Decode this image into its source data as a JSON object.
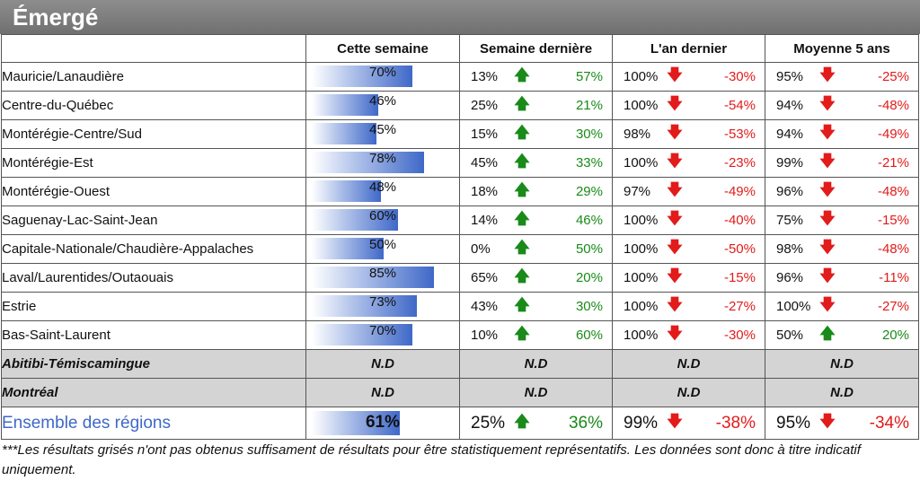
{
  "title": "Émergé",
  "headers": {
    "region": "",
    "this_week": "Cette semaine",
    "last_week": "Semaine dernière",
    "last_year": "L'an dernier",
    "avg5": "Moyenne 5 ans"
  },
  "rows": [
    {
      "region": "Mauricie/Lanaudière",
      "this_week": "70%",
      "this_week_pct": 70,
      "last_week": {
        "value": "13%",
        "dir": "up",
        "delta": "57%"
      },
      "last_year": {
        "value": "100%",
        "dir": "down",
        "delta": "-30%"
      },
      "avg5": {
        "value": "95%",
        "dir": "down",
        "delta": "-25%"
      }
    },
    {
      "region": "Centre-du-Québec",
      "this_week": "46%",
      "this_week_pct": 46,
      "last_week": {
        "value": "25%",
        "dir": "up",
        "delta": "21%"
      },
      "last_year": {
        "value": "100%",
        "dir": "down",
        "delta": "-54%"
      },
      "avg5": {
        "value": "94%",
        "dir": "down",
        "delta": "-48%"
      }
    },
    {
      "region": "Montérégie-Centre/Sud",
      "this_week": "45%",
      "this_week_pct": 45,
      "last_week": {
        "value": "15%",
        "dir": "up",
        "delta": "30%"
      },
      "last_year": {
        "value": "98%",
        "dir": "down",
        "delta": "-53%"
      },
      "avg5": {
        "value": "94%",
        "dir": "down",
        "delta": "-49%"
      }
    },
    {
      "region": "Montérégie-Est",
      "this_week": "78%",
      "this_week_pct": 78,
      "last_week": {
        "value": "45%",
        "dir": "up",
        "delta": "33%"
      },
      "last_year": {
        "value": "100%",
        "dir": "down",
        "delta": "-23%"
      },
      "avg5": {
        "value": "99%",
        "dir": "down",
        "delta": "-21%"
      }
    },
    {
      "region": "Montérégie-Ouest",
      "this_week": "48%",
      "this_week_pct": 48,
      "last_week": {
        "value": "18%",
        "dir": "up",
        "delta": "29%"
      },
      "last_year": {
        "value": "97%",
        "dir": "down",
        "delta": "-49%"
      },
      "avg5": {
        "value": "96%",
        "dir": "down",
        "delta": "-48%"
      }
    },
    {
      "region": "Saguenay-Lac-Saint-Jean",
      "this_week": "60%",
      "this_week_pct": 60,
      "last_week": {
        "value": "14%",
        "dir": "up",
        "delta": "46%"
      },
      "last_year": {
        "value": "100%",
        "dir": "down",
        "delta": "-40%"
      },
      "avg5": {
        "value": "75%",
        "dir": "down",
        "delta": "-15%"
      }
    },
    {
      "region": "Capitale-Nationale/Chaudière-Appalaches",
      "this_week": "50%",
      "this_week_pct": 50,
      "last_week": {
        "value": "0%",
        "dir": "up",
        "delta": "50%"
      },
      "last_year": {
        "value": "100%",
        "dir": "down",
        "delta": "-50%"
      },
      "avg5": {
        "value": "98%",
        "dir": "down",
        "delta": "-48%"
      }
    },
    {
      "region": "Laval/Laurentides/Outaouais",
      "this_week": "85%",
      "this_week_pct": 85,
      "last_week": {
        "value": "65%",
        "dir": "up",
        "delta": "20%"
      },
      "last_year": {
        "value": "100%",
        "dir": "down",
        "delta": "-15%"
      },
      "avg5": {
        "value": "96%",
        "dir": "down",
        "delta": "-11%"
      }
    },
    {
      "region": "Estrie",
      "this_week": "73%",
      "this_week_pct": 73,
      "last_week": {
        "value": "43%",
        "dir": "up",
        "delta": "30%"
      },
      "last_year": {
        "value": "100%",
        "dir": "down",
        "delta": "-27%"
      },
      "avg5": {
        "value": "100%",
        "dir": "down",
        "delta": "-27%"
      }
    },
    {
      "region": "Bas-Saint-Laurent",
      "this_week": "70%",
      "this_week_pct": 70,
      "last_week": {
        "value": "10%",
        "dir": "up",
        "delta": "60%"
      },
      "last_year": {
        "value": "100%",
        "dir": "down",
        "delta": "-30%"
      },
      "avg5": {
        "value": "50%",
        "dir": "up",
        "delta": "20%"
      }
    }
  ],
  "nd_rows": [
    {
      "region": "Abitibi-Témiscamingue",
      "nd": "N.D"
    },
    {
      "region": "Montréal",
      "nd": "N.D"
    }
  ],
  "total": {
    "region": "Ensemble des régions",
    "this_week": "61%",
    "this_week_pct": 61,
    "last_week": {
      "value": "25%",
      "dir": "up",
      "delta": "36%"
    },
    "last_year": {
      "value": "99%",
      "dir": "down",
      "delta": "-38%"
    },
    "avg5": {
      "value": "95%",
      "dir": "down",
      "delta": "-34%"
    }
  },
  "arrows": {
    "up": "🡅",
    "down": "🡇"
  },
  "icons": {
    "up": "arrow-up-icon",
    "down": "arrow-down-icon"
  },
  "colors": {
    "positive": "#1a8a1a",
    "negative": "#e21b1b",
    "bar": "#3f68c8",
    "total_label": "#3f68c8",
    "gray_row": "#d4d4d4"
  },
  "footnote": "***Les résultats grisés n'ont pas obtenus suffisament de résultats pour être statistiquement représentatifs. Les données sont donc à titre indicatif uniquement."
}
